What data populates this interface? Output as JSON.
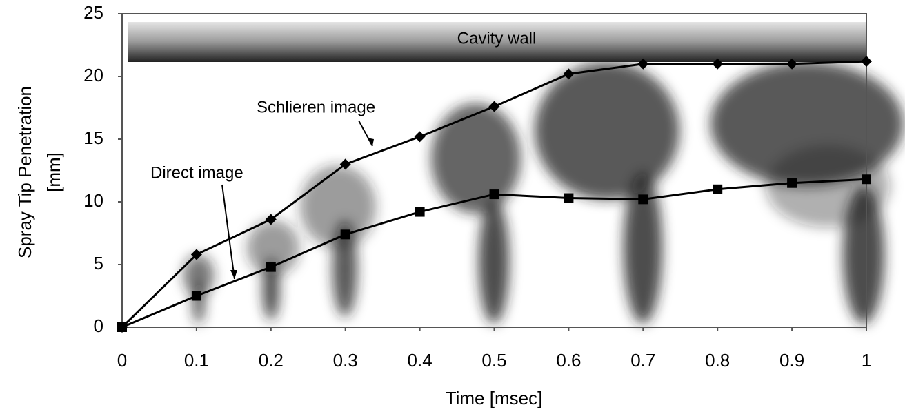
{
  "chart_data": {
    "type": "line",
    "x_label": "Time [msec]",
    "y_label_lines": [
      "Spray Tip Penetration",
      "[mm]"
    ],
    "annotations": [
      "Cavity wall",
      "Schlieren image",
      "Direct image"
    ],
    "x": [
      0,
      0.1,
      0.2,
      0.3,
      0.4,
      0.5,
      0.6,
      0.7,
      0.8,
      0.9,
      1
    ],
    "series": [
      {
        "name": "Schlieren image",
        "color": "#000000",
        "marker": "diamond",
        "values": [
          0,
          5.8,
          8.6,
          13.0,
          15.2,
          17.6,
          20.2,
          21.0,
          21.0,
          21.0,
          21.2
        ]
      },
      {
        "name": "Direct image",
        "color": "#000000",
        "marker": "square",
        "values": [
          0,
          2.5,
          4.8,
          7.4,
          9.2,
          10.6,
          10.3,
          10.2,
          11.0,
          11.5,
          11.8
        ]
      }
    ],
    "xlim": [
      0,
      1
    ],
    "xticks": [
      0,
      0.1,
      0.2,
      0.3,
      0.4,
      0.5,
      0.6,
      0.7,
      0.8,
      0.9,
      1
    ],
    "ylim": [
      0,
      25
    ],
    "yticks": [
      0,
      5,
      10,
      15,
      20,
      25
    ],
    "grid": false
  }
}
